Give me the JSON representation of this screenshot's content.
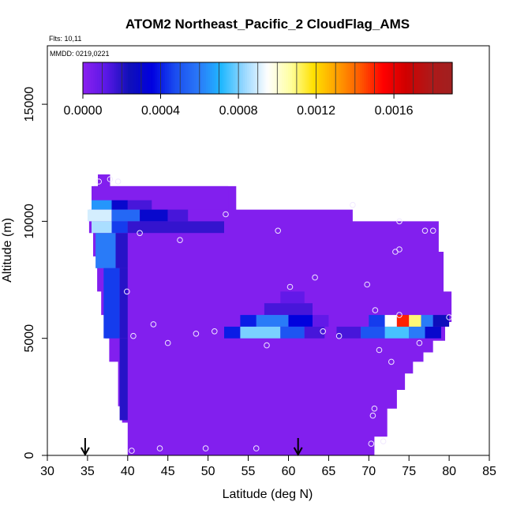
{
  "chart_data": {
    "type": "heatmap",
    "title": "ATOM2 Northeast_Pacific_2 CloudFlag_AMS",
    "flights_label": "Flts: 10,11",
    "dates_label": "MMDD: 0219,0221",
    "xlabel": "Latitude (deg N)",
    "ylabel": "Altitude (m)",
    "xlim": [
      30,
      85
    ],
    "ylim": [
      0,
      17500
    ],
    "xticks": [
      "30",
      "35",
      "40",
      "45",
      "50",
      "55",
      "60",
      "65",
      "70",
      "75",
      "80",
      "85"
    ],
    "yticks": [
      "0",
      "5000",
      "10000",
      "15000"
    ],
    "colorbar": {
      "range": [
        0,
        0.0019
      ],
      "tick_values": [
        0,
        0.0004,
        0.0008,
        0.0012,
        0.0016
      ],
      "tick_labels": [
        "0.0000",
        "0.0004",
        "0.0008",
        "0.0012",
        "0.0016"
      ],
      "colors": [
        "#8a20f0",
        "#5a18e6",
        "#1010b8",
        "#0000e0",
        "#1a4cf0",
        "#2a78f8",
        "#20b8ff",
        "#9ad8ff",
        "#fefefe",
        "#ffffa0",
        "#ffe000",
        "#ffa000",
        "#ff5a00",
        "#ff0000",
        "#d00000",
        "#b01818",
        "#a02020"
      ]
    },
    "cells": [
      {
        "lat_range": [
          36.3,
          37.8
        ],
        "alt_range": [
          11500,
          12000
        ],
        "value": 2e-05
      },
      {
        "lat_range": [
          35.5,
          52.5
        ],
        "alt_range": [
          10500,
          11500
        ],
        "value": 2e-05
      },
      {
        "lat_range": [
          35.5,
          38.0
        ],
        "alt_range": [
          10500,
          10900
        ],
        "value": 0.00065
      },
      {
        "lat_range": [
          38.0,
          40.0
        ],
        "alt_range": [
          10500,
          10900
        ],
        "value": 0.0003
      },
      {
        "lat_range": [
          40.0,
          43.0
        ],
        "alt_range": [
          10500,
          10900
        ],
        "value": 0.00015
      },
      {
        "lat_range": [
          35.0,
          38.0
        ],
        "alt_range": [
          10000,
          10500
        ],
        "value": 0.0009
      },
      {
        "lat_range": [
          38.0,
          41.5
        ],
        "alt_range": [
          10000,
          10500
        ],
        "value": 0.00055
      },
      {
        "lat_range": [
          41.5,
          45.0
        ],
        "alt_range": [
          10000,
          10500
        ],
        "value": 0.0003
      },
      {
        "lat_range": [
          45.0,
          47.5
        ],
        "alt_range": [
          10000,
          10500
        ],
        "value": 0.00015
      },
      {
        "lat_range": [
          35.5,
          38.0
        ],
        "alt_range": [
          9500,
          10000
        ],
        "value": 0.00085
      },
      {
        "lat_range": [
          38.0,
          40.0
        ],
        "alt_range": [
          9500,
          10000
        ],
        "value": 0.00045
      },
      {
        "lat_range": [
          40.0,
          52.0
        ],
        "alt_range": [
          9500,
          10000
        ],
        "value": 0.00018
      },
      {
        "lat_range": [
          36.0,
          38.5
        ],
        "alt_range": [
          8000,
          9500
        ],
        "value": 0.0006
      },
      {
        "lat_range": [
          38.5,
          40.0
        ],
        "alt_range": [
          8000,
          9500
        ],
        "value": 0.0002
      },
      {
        "lat_range": [
          37.0,
          39.0
        ],
        "alt_range": [
          5000,
          8000
        ],
        "value": 0.00045
      },
      {
        "lat_range": [
          39.0,
          40.0
        ],
        "alt_range": [
          5000,
          8000
        ],
        "value": 0.0002
      },
      {
        "lat_range": [
          39.0,
          40.0
        ],
        "alt_range": [
          1500,
          5000
        ],
        "value": 0.0002
      },
      {
        "lat_range": [
          59.0,
          62.0
        ],
        "alt_range": [
          6500,
          7000
        ],
        "value": 0.0001
      },
      {
        "lat_range": [
          57.0,
          63.0
        ],
        "alt_range": [
          6000,
          6500
        ],
        "value": 0.00015
      },
      {
        "lat_range": [
          54.0,
          56.0
        ],
        "alt_range": [
          5500,
          6000
        ],
        "value": 0.0004
      },
      {
        "lat_range": [
          56.0,
          60.0
        ],
        "alt_range": [
          5500,
          6000
        ],
        "value": 0.0006
      },
      {
        "lat_range": [
          60.0,
          63.0
        ],
        "alt_range": [
          5500,
          6000
        ],
        "value": 0.00035
      },
      {
        "lat_range": [
          63.0,
          65.0
        ],
        "alt_range": [
          5500,
          6000
        ],
        "value": 0.0001
      },
      {
        "lat_range": [
          52.0,
          54.0
        ],
        "alt_range": [
          5000,
          5500
        ],
        "value": 0.0004
      },
      {
        "lat_range": [
          54.0,
          59.0
        ],
        "alt_range": [
          5000,
          5500
        ],
        "value": 0.0008
      },
      {
        "lat_range": [
          59.0,
          62.0
        ],
        "alt_range": [
          5000,
          5500
        ],
        "value": 0.0005
      },
      {
        "lat_range": [
          62.0,
          64.5
        ],
        "alt_range": [
          5000,
          5500
        ],
        "value": 0.00015
      },
      {
        "lat_range": [
          66.0,
          69.0
        ],
        "alt_range": [
          5000,
          5500
        ],
        "value": 0.00015
      },
      {
        "lat_range": [
          69.0,
          72.0
        ],
        "alt_range": [
          5000,
          5500
        ],
        "value": 0.0005
      },
      {
        "lat_range": [
          72.0,
          75.0
        ],
        "alt_range": [
          5000,
          5500
        ],
        "value": 0.00075
      },
      {
        "lat_range": [
          75.0,
          77.0
        ],
        "alt_range": [
          5000,
          5500
        ],
        "value": 0.0006
      },
      {
        "lat_range": [
          77.0,
          79.0
        ],
        "alt_range": [
          5000,
          5500
        ],
        "value": 0.0003
      },
      {
        "lat_range": [
          70.0,
          72.0
        ],
        "alt_range": [
          5500,
          6000
        ],
        "value": 0.00045
      },
      {
        "lat_range": [
          72.0,
          73.5
        ],
        "alt_range": [
          5500,
          6000
        ],
        "value": 0.00095
      },
      {
        "lat_range": [
          73.5,
          75.0
        ],
        "alt_range": [
          5500,
          6000
        ],
        "value": 0.0015
      },
      {
        "lat_range": [
          75.0,
          76.5
        ],
        "alt_range": [
          5500,
          6000
        ],
        "value": 0.0011
      },
      {
        "lat_range": [
          76.5,
          78.0
        ],
        "alt_range": [
          5500,
          6000
        ],
        "value": 0.0006
      },
      {
        "lat_range": [
          78.0,
          80.0
        ],
        "alt_range": [
          5500,
          6000
        ],
        "value": 0.00025
      }
    ],
    "background_region": {
      "value": 2e-05,
      "outline": [
        [
          36.3,
          12000
        ],
        [
          37.8,
          12000
        ],
        [
          37.8,
          11500
        ],
        [
          53.5,
          11500
        ],
        [
          53.5,
          10500
        ],
        [
          68,
          10500
        ],
        [
          68,
          10000
        ],
        [
          78.7,
          10000
        ],
        [
          78.7,
          8700
        ],
        [
          79.3,
          8700
        ],
        [
          79.3,
          7000
        ],
        [
          80.3,
          7000
        ],
        [
          80.3,
          5700
        ],
        [
          79.5,
          5700
        ],
        [
          79.5,
          4900
        ],
        [
          78,
          4900
        ],
        [
          78,
          4400
        ],
        [
          76.8,
          4400
        ],
        [
          76.8,
          4000
        ],
        [
          75.5,
          4000
        ],
        [
          75.5,
          3500
        ],
        [
          74.5,
          3500
        ],
        [
          74.5,
          2800
        ],
        [
          73.5,
          2800
        ],
        [
          73.5,
          2000
        ],
        [
          72.3,
          2000
        ],
        [
          72.3,
          800
        ],
        [
          70.7,
          800
        ],
        [
          70.7,
          0
        ],
        [
          40,
          0
        ],
        [
          40,
          1400
        ],
        [
          39.3,
          1400
        ],
        [
          39.3,
          2100
        ],
        [
          38.8,
          2100
        ],
        [
          38.8,
          4000
        ],
        [
          37.7,
          4000
        ],
        [
          37.7,
          5000
        ],
        [
          37.2,
          5000
        ],
        [
          37.2,
          6000
        ],
        [
          36.7,
          6000
        ],
        [
          36.7,
          7000
        ],
        [
          36.2,
          7000
        ],
        [
          36.2,
          8500
        ],
        [
          35.7,
          8500
        ],
        [
          35.7,
          9500
        ],
        [
          35.2,
          9500
        ],
        [
          35.2,
          10500
        ],
        [
          35.8,
          10500
        ],
        [
          35.8,
          11500
        ],
        [
          36.3,
          11500
        ]
      ]
    },
    "points": [
      [
        36.4,
        11700
      ],
      [
        37.8,
        11800
      ],
      [
        38.8,
        11700
      ],
      [
        41.5,
        9500
      ],
      [
        46.5,
        9200
      ],
      [
        52.2,
        10300
      ],
      [
        58.7,
        9600
      ],
      [
        68,
        10700
      ],
      [
        73.8,
        10000
      ],
      [
        77,
        9600
      ],
      [
        78,
        9600
      ],
      [
        73.3,
        8700
      ],
      [
        73.8,
        8800
      ],
      [
        63.3,
        7600
      ],
      [
        60.2,
        7200
      ],
      [
        69.8,
        7300
      ],
      [
        70.8,
        6200
      ],
      [
        39.9,
        7000
      ],
      [
        43.2,
        5600
      ],
      [
        40.7,
        5100
      ],
      [
        45,
        4800
      ],
      [
        48.5,
        5200
      ],
      [
        50.8,
        5300
      ],
      [
        57.3,
        4700
      ],
      [
        64.3,
        5300
      ],
      [
        66.3,
        5100
      ],
      [
        71.3,
        4500
      ],
      [
        72.8,
        4000
      ],
      [
        76.3,
        4800
      ],
      [
        80,
        5900
      ],
      [
        73.8,
        6000
      ],
      [
        70.7,
        2000
      ],
      [
        70.5,
        1700
      ],
      [
        70.3,
        500
      ],
      [
        71.8,
        600
      ],
      [
        44,
        300
      ],
      [
        49.7,
        300
      ],
      [
        56,
        300
      ],
      [
        40.5,
        200
      ]
    ],
    "arrows_lat": [
      34.7,
      61.2
    ]
  }
}
